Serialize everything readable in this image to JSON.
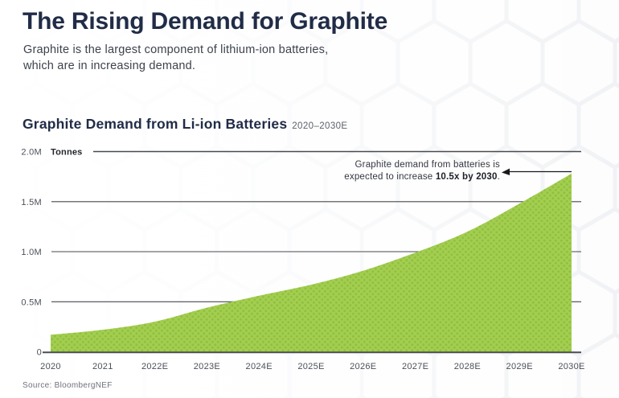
{
  "header": {
    "title": "The Rising Demand for Graphite",
    "subtitle_line1": "Graphite is the largest component of lithium-ion batteries,",
    "subtitle_line2": "which are in increasing demand."
  },
  "chart": {
    "title": "Graphite Demand from Li-ion Batteries",
    "range": "2020–2030E",
    "source": "Source: BloombergNEF"
  },
  "chart_data": {
    "type": "area",
    "title": "Graphite Demand from Li-ion Batteries 2020–2030E",
    "ylabel": "Tonnes",
    "unit": "million tonnes",
    "categories": [
      "2020",
      "2021",
      "2022E",
      "2023E",
      "2024E",
      "2025E",
      "2026E",
      "2027E",
      "2028E",
      "2029E",
      "2030E"
    ],
    "values": [
      0.17,
      0.22,
      0.3,
      0.44,
      0.56,
      0.67,
      0.81,
      0.99,
      1.2,
      1.48,
      1.78
    ],
    "ylim": [
      0,
      2.0
    ],
    "yticks": [
      {
        "value": 0,
        "label": "0"
      },
      {
        "value": 0.5,
        "label": "0.5M"
      },
      {
        "value": 1.0,
        "label": "1.0M"
      },
      {
        "value": 1.5,
        "label": "1.5M"
      },
      {
        "value": 2.0,
        "label": "2.0M"
      }
    ],
    "grid": true,
    "legend": "none",
    "annotation": {
      "line1": "Graphite demand from batteries is",
      "line2_prefix": "expected to increase ",
      "line2_bold": "10.5x by 2030",
      "line2_suffix": "."
    },
    "colors": {
      "area_fill": "#a3ce50",
      "area_dots": "#91c040",
      "title_navy": "#212c47",
      "grid_line": "#474a4f",
      "axis_text": "#4b5058"
    }
  }
}
